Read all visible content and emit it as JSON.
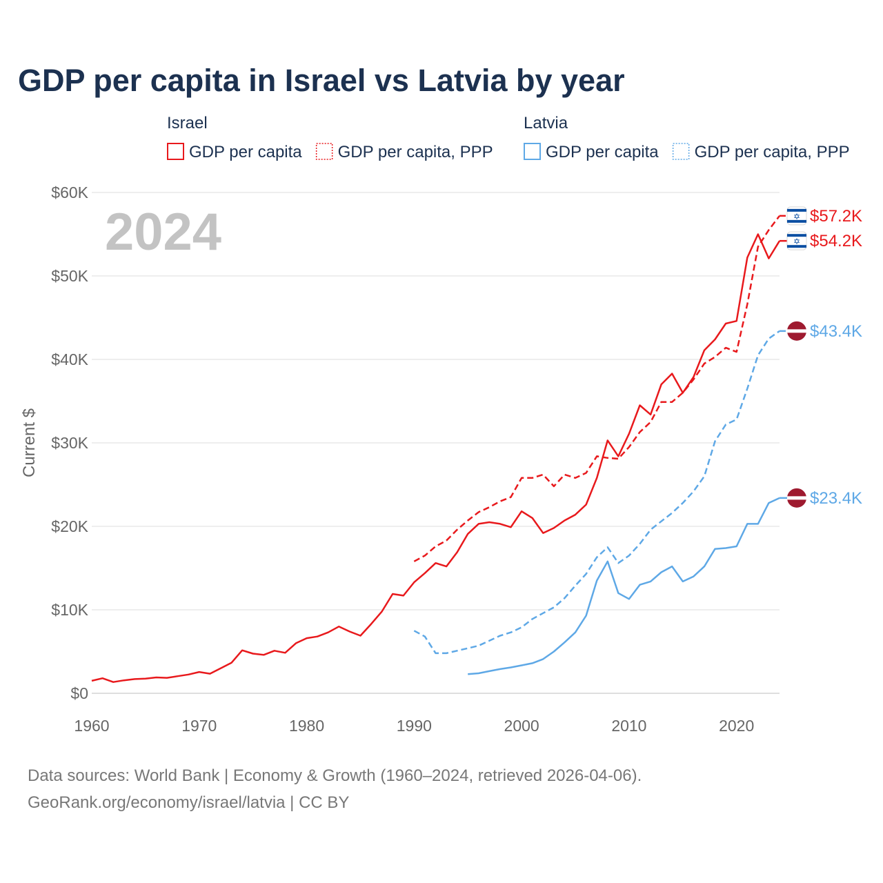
{
  "colors": {
    "israel": "#e8191c",
    "latvia": "#5ea8e6",
    "title": "#1c3150",
    "axis_text": "#666666",
    "watermark": "#c3c3c3",
    "grid": "#e8e8e8",
    "israel_flag_blue": "#0b4ea2",
    "latvia_flag_red": "#9e1a2f"
  },
  "chart_data": {
    "type": "line",
    "title": "GDP per capita in Israel vs Latvia by year",
    "year_label": "2024",
    "ylabel": "Current $",
    "xlabel": "",
    "xlim": [
      1960,
      2024
    ],
    "ylim": [
      0,
      60000
    ],
    "x_ticks": [
      1960,
      1970,
      1980,
      1990,
      2000,
      2010,
      2020
    ],
    "y_ticks": [
      {
        "value": 0,
        "label": "$0"
      },
      {
        "value": 10000,
        "label": "$10K"
      },
      {
        "value": 20000,
        "label": "$20K"
      },
      {
        "value": 30000,
        "label": "$30K"
      },
      {
        "value": 40000,
        "label": "$40K"
      },
      {
        "value": 50000,
        "label": "$50K"
      },
      {
        "value": 60000,
        "label": "$60K"
      }
    ],
    "legend": {
      "groups": [
        {
          "country": "Israel",
          "color_key": "israel",
          "items": [
            {
              "label": "GDP per capita",
              "style": "solid"
            },
            {
              "label": "GDP per capita, PPP",
              "style": "dotted"
            }
          ]
        },
        {
          "country": "Latvia",
          "color_key": "latvia",
          "items": [
            {
              "label": "GDP per capita",
              "style": "solid"
            },
            {
              "label": "GDP per capita, PPP",
              "style": "dotted"
            }
          ]
        }
      ]
    },
    "series": [
      {
        "name": "Israel GDP per capita",
        "country": "israel",
        "color_key": "israel",
        "dash": false,
        "end_label": "$54.2K",
        "flag": "israel",
        "x": [
          1960,
          1961,
          1962,
          1963,
          1964,
          1965,
          1966,
          1967,
          1968,
          1969,
          1970,
          1971,
          1972,
          1973,
          1974,
          1975,
          1976,
          1977,
          1978,
          1979,
          1980,
          1981,
          1982,
          1983,
          1984,
          1985,
          1986,
          1987,
          1988,
          1989,
          1990,
          1991,
          1992,
          1993,
          1994,
          1995,
          1996,
          1997,
          1998,
          1999,
          2000,
          2001,
          2002,
          2003,
          2004,
          2005,
          2006,
          2007,
          2008,
          2009,
          2010,
          2011,
          2012,
          2013,
          2014,
          2015,
          2016,
          2017,
          2018,
          2019,
          2020,
          2021,
          2022,
          2023,
          2024
        ],
        "y": [
          1500,
          1800,
          1350,
          1550,
          1700,
          1750,
          1900,
          1850,
          2050,
          2250,
          2550,
          2350,
          3000,
          3650,
          5150,
          4750,
          4600,
          5100,
          4850,
          6000,
          6600,
          6800,
          7300,
          8000,
          7400,
          6900,
          8300,
          9800,
          11900,
          11700,
          13300,
          14400,
          15600,
          15200,
          16900,
          19100,
          20300,
          20500,
          20300,
          19900,
          21800,
          21000,
          19200,
          19800,
          20700,
          21400,
          22600,
          25800,
          30300,
          28400,
          31100,
          34500,
          33400,
          37000,
          38300,
          36000,
          37900,
          41100,
          42400,
          44300,
          44600,
          52200,
          55000,
          52100,
          54200
        ]
      },
      {
        "name": "Israel GDP per capita, PPP",
        "country": "israel",
        "color_key": "israel",
        "dash": true,
        "end_label": "$57.2K",
        "flag": "israel",
        "x": [
          1990,
          1991,
          1992,
          1993,
          1994,
          1995,
          1996,
          1997,
          1998,
          1999,
          2000,
          2001,
          2002,
          2003,
          2004,
          2005,
          2006,
          2007,
          2008,
          2009,
          2010,
          2011,
          2012,
          2013,
          2014,
          2015,
          2016,
          2017,
          2018,
          2019,
          2020,
          2021,
          2022,
          2023,
          2024
        ],
        "y": [
          15800,
          16500,
          17600,
          18300,
          19600,
          20700,
          21700,
          22300,
          23000,
          23500,
          25800,
          25800,
          26200,
          24800,
          26200,
          25800,
          26400,
          28400,
          28200,
          28100,
          29500,
          31300,
          32500,
          34900,
          34900,
          36000,
          37600,
          39500,
          40300,
          41400,
          40900,
          46600,
          53500,
          55500,
          57200
        ]
      },
      {
        "name": "Latvia GDP per capita",
        "country": "latvia",
        "color_key": "latvia",
        "dash": false,
        "end_label": "$23.4K",
        "flag": "latvia",
        "x": [
          1995,
          1996,
          1997,
          1998,
          1999,
          2000,
          2001,
          2002,
          2003,
          2004,
          2005,
          2006,
          2007,
          2008,
          2009,
          2010,
          2011,
          2012,
          2013,
          2014,
          2015,
          2016,
          2017,
          2018,
          2019,
          2020,
          2021,
          2022,
          2023,
          2024
        ],
        "y": [
          2300,
          2400,
          2650,
          2900,
          3100,
          3350,
          3600,
          4100,
          5000,
          6100,
          7300,
          9300,
          13500,
          15800,
          12000,
          11300,
          13000,
          13400,
          14500,
          15200,
          13400,
          14000,
          15200,
          17300,
          17400,
          17600,
          20300,
          20300,
          22800,
          23400
        ]
      },
      {
        "name": "Latvia GDP per capita, PPP",
        "country": "latvia",
        "color_key": "latvia",
        "dash": true,
        "end_label": "$43.4K",
        "flag": "latvia",
        "x": [
          1990,
          1991,
          1992,
          1993,
          1994,
          1995,
          1996,
          1997,
          1998,
          1999,
          2000,
          2001,
          2002,
          2003,
          2004,
          2005,
          2006,
          2007,
          2008,
          2009,
          2010,
          2011,
          2012,
          2013,
          2014,
          2015,
          2016,
          2017,
          2018,
          2019,
          2020,
          2021,
          2022,
          2023,
          2024
        ],
        "y": [
          7500,
          6800,
          4800,
          4800,
          5100,
          5400,
          5700,
          6300,
          6900,
          7300,
          7900,
          8900,
          9600,
          10300,
          11400,
          12900,
          14300,
          16300,
          17500,
          15600,
          16500,
          17900,
          19600,
          20600,
          21600,
          22800,
          24200,
          26000,
          30200,
          32200,
          32800,
          36500,
          40500,
          42500,
          43400
        ]
      }
    ],
    "sources_line1": "Data sources: World Bank | Economy & Growth (1960–2024, retrieved 2026-04-06).",
    "sources_line2": "GeoRank.org/economy/israel/latvia | CC BY"
  }
}
